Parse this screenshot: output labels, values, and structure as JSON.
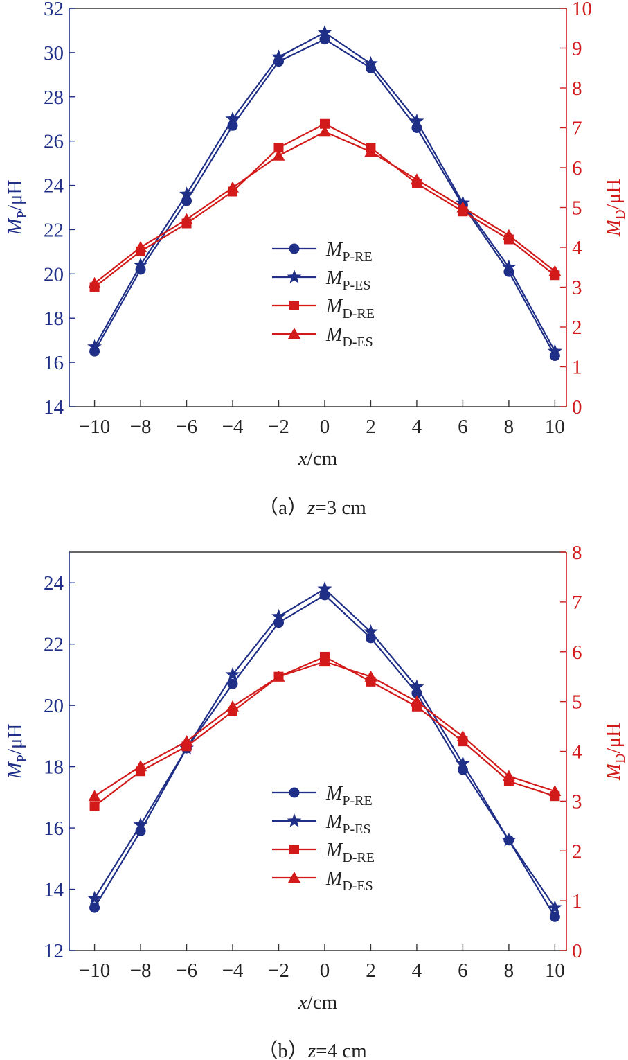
{
  "colors": {
    "primary": "#1f2e86",
    "secondary": "#d21a1a",
    "frame": "#333333"
  },
  "legend": [
    {
      "main": "M",
      "sub": "P-RE",
      "marker": "circle",
      "axis": "left"
    },
    {
      "main": "M",
      "sub": "P-ES",
      "marker": "star",
      "axis": "left"
    },
    {
      "main": "M",
      "sub": "D-RE",
      "marker": "square",
      "axis": "right"
    },
    {
      "main": "M",
      "sub": "D-ES",
      "marker": "triangle",
      "axis": "right"
    }
  ],
  "chart_data": [
    {
      "type": "line",
      "caption_prefix": "（a）",
      "caption_var": "z",
      "caption_value": "=3 cm",
      "xlabel_var": "x",
      "xlabel_unit": "/cm",
      "ylabel_left_var": "M",
      "ylabel_left_sub": "P",
      "ylabel_left_unit": "/μH",
      "ylabel_right_var": "M",
      "ylabel_right_sub": "D",
      "ylabel_right_unit": "/μH",
      "x": [
        -10,
        -8,
        -6,
        -4,
        -2,
        0,
        2,
        4,
        6,
        8,
        10
      ],
      "x_ticks": [
        "−10",
        "−8",
        "−6",
        "−4",
        "−2",
        "0",
        "2",
        "4",
        "6",
        "8",
        "10"
      ],
      "xlim": [
        -11.1,
        10.5
      ],
      "ylim_left": [
        14,
        32
      ],
      "y_ticks_left": [
        14,
        16,
        18,
        20,
        22,
        24,
        26,
        28,
        30,
        32
      ],
      "ylim_right": [
        0,
        10
      ],
      "y_ticks_right": [
        0,
        1,
        2,
        3,
        4,
        5,
        6,
        7,
        8,
        9,
        10
      ],
      "series": [
        {
          "name": "P-RE",
          "axis": "left",
          "marker": "circle",
          "values": [
            16.5,
            20.2,
            23.3,
            26.7,
            29.6,
            30.6,
            29.3,
            26.6,
            23.1,
            20.1,
            16.3
          ]
        },
        {
          "name": "P-ES",
          "axis": "left",
          "marker": "star",
          "values": [
            16.7,
            20.4,
            23.6,
            27.0,
            29.8,
            30.9,
            29.5,
            26.9,
            23.2,
            20.3,
            16.5
          ]
        },
        {
          "name": "D-RE",
          "axis": "right",
          "marker": "square",
          "values": [
            3.0,
            3.9,
            4.6,
            5.4,
            6.5,
            7.1,
            6.5,
            5.6,
            4.9,
            4.2,
            3.3
          ]
        },
        {
          "name": "D-ES",
          "axis": "right",
          "marker": "triangle",
          "values": [
            3.1,
            4.0,
            4.7,
            5.5,
            6.3,
            6.9,
            6.4,
            5.7,
            5.0,
            4.3,
            3.4
          ]
        }
      ]
    },
    {
      "type": "line",
      "caption_prefix": "（b）",
      "caption_var": "z",
      "caption_value": "=4 cm",
      "xlabel_var": "x",
      "xlabel_unit": "/cm",
      "ylabel_left_var": "M",
      "ylabel_left_sub": "P",
      "ylabel_left_unit": "/μH",
      "ylabel_right_var": "M",
      "ylabel_right_sub": "D",
      "ylabel_right_unit": "/μH",
      "x": [
        -10,
        -8,
        -6,
        -4,
        -2,
        0,
        2,
        4,
        6,
        8,
        10
      ],
      "x_ticks": [
        "−10",
        "−8",
        "−6",
        "−4",
        "−2",
        "0",
        "2",
        "4",
        "6",
        "8",
        "10"
      ],
      "xlim": [
        -11.1,
        10.5
      ],
      "ylim_left": [
        12,
        25
      ],
      "y_ticks_left": [
        12,
        14,
        16,
        18,
        20,
        22,
        24
      ],
      "ylim_right": [
        0,
        8
      ],
      "y_ticks_right": [
        0,
        1,
        2,
        3,
        4,
        5,
        6,
        7,
        8
      ],
      "series": [
        {
          "name": "P-RE",
          "axis": "left",
          "marker": "circle",
          "values": [
            13.4,
            15.9,
            18.6,
            20.7,
            22.7,
            23.6,
            22.2,
            20.4,
            17.9,
            15.6,
            13.1
          ]
        },
        {
          "name": "P-ES",
          "axis": "left",
          "marker": "star",
          "values": [
            13.7,
            16.1,
            18.6,
            21.0,
            22.9,
            23.8,
            22.4,
            20.6,
            18.1,
            15.6,
            13.4
          ]
        },
        {
          "name": "D-RE",
          "axis": "right",
          "marker": "square",
          "values": [
            2.9,
            3.6,
            4.1,
            4.8,
            5.5,
            5.9,
            5.4,
            4.9,
            4.2,
            3.4,
            3.1
          ]
        },
        {
          "name": "D-ES",
          "axis": "right",
          "marker": "triangle",
          "values": [
            3.1,
            3.7,
            4.2,
            4.9,
            5.5,
            5.8,
            5.5,
            5.0,
            4.3,
            3.5,
            3.2
          ]
        }
      ]
    }
  ]
}
